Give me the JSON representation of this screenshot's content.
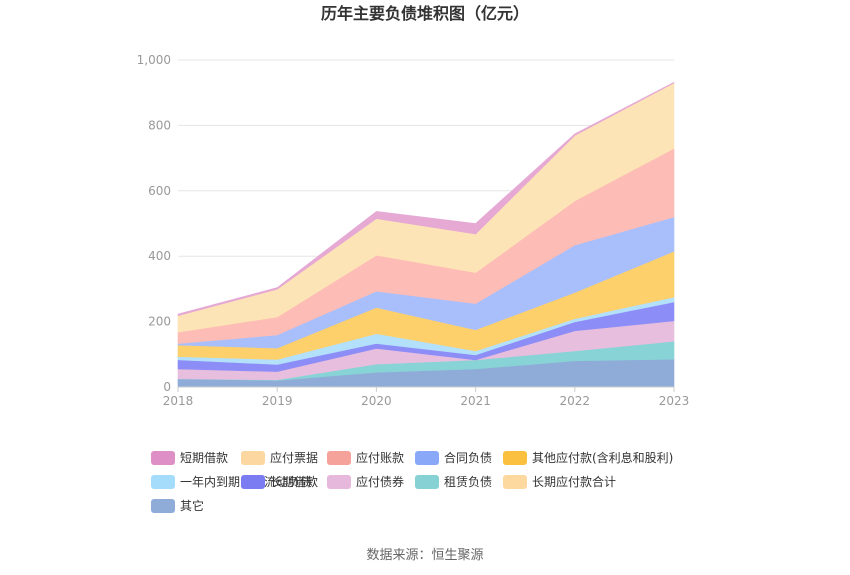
{
  "chart_data": {
    "type": "area",
    "stacked": true,
    "title": "历年主要负债堆积图（亿元）",
    "source": "数据来源：恒生聚源",
    "x": [
      "2018",
      "2019",
      "2020",
      "2021",
      "2022",
      "2023"
    ],
    "y_ticks": [
      "0",
      "200",
      "400",
      "600",
      "800",
      "1,000"
    ],
    "ylim": [
      0,
      1000
    ],
    "grid": true,
    "legend_position": "bottom",
    "series": [
      {
        "name": "其它",
        "color": "#8fabd8",
        "values": [
          25,
          20,
          45,
          55,
          80,
          85
        ]
      },
      {
        "name": "租赁负债",
        "color": "#88d3d5",
        "values": [
          0,
          2,
          25,
          28,
          30,
          55
        ]
      },
      {
        "name": "应付债券",
        "color": "#e8bede",
        "values": [
          30,
          25,
          48,
          0,
          62,
          62
        ]
      },
      {
        "name": "长期借款",
        "color": "#8d8df7",
        "values": [
          28,
          22,
          15,
          15,
          27,
          58
        ]
      },
      {
        "name": "一年内到期的非流动负债",
        "color": "#b3e0fa",
        "values": [
          10,
          15,
          30,
          12,
          10,
          15
        ]
      },
      {
        "name": "其他应付款(含利息和股利)",
        "color": "#fdd06b",
        "values": [
          35,
          35,
          80,
          65,
          80,
          140
        ]
      },
      {
        "name": "合同负债",
        "color": "#a8bffc",
        "values": [
          5,
          40,
          50,
          80,
          145,
          105
        ]
      },
      {
        "name": "应付账款",
        "color": "#fdbcb6",
        "values": [
          35,
          55,
          110,
          95,
          135,
          210
        ]
      },
      {
        "name": "长期应付款合计",
        "color": "#ffd9a0",
        "values": [
          0,
          0,
          0,
          0,
          0,
          0
        ]
      },
      {
        "name": "应付票据",
        "color": "#fde4b7",
        "values": [
          50,
          85,
          112,
          118,
          200,
          200
        ]
      },
      {
        "name": "短期借款",
        "color": "#e5a9d4",
        "values": [
          5,
          5,
          22,
          32,
          5,
          2
        ]
      }
    ],
    "legend": [
      {
        "name": "短期借款",
        "color": "#de8fc5"
      },
      {
        "name": "应付票据",
        "color": "#fcd8a0"
      },
      {
        "name": "应付账款",
        "color": "#f5a39a"
      },
      {
        "name": "合同负债",
        "color": "#8aa8f8"
      },
      {
        "name": "其他应付款(含利息和股利)",
        "color": "#fbc03f"
      },
      {
        "name": "一年内到期的非流动负债",
        "color": "#a5dcfb"
      },
      {
        "name": "长期借款",
        "color": "#7c7cf2"
      },
      {
        "name": "应付债券",
        "color": "#e6b9dc"
      },
      {
        "name": "租赁负债",
        "color": "#86d1d4"
      },
      {
        "name": "长期应付款合计",
        "color": "#fdd9a0"
      },
      {
        "name": "其它",
        "color": "#8fabd8"
      }
    ]
  }
}
